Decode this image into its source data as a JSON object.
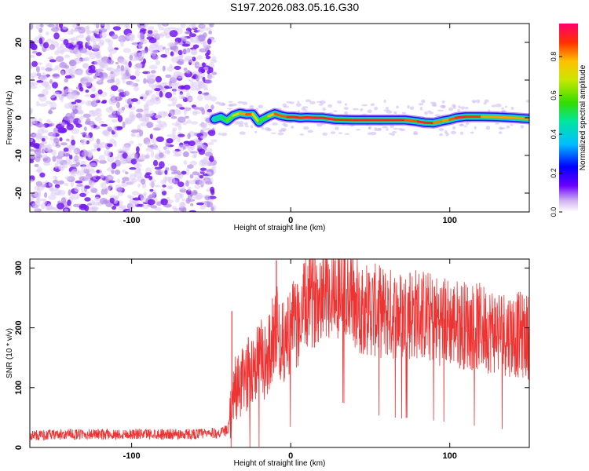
{
  "title": "S197.2026.083.05.16.G30",
  "chart_data": [
    {
      "type": "heatmap",
      "xlabel": "Height of straight line (km)",
      "ylabel": "Frequency (Hz)",
      "xlim": [
        -164,
        150
      ],
      "ylim": [
        -25,
        25
      ],
      "xticks": [
        -100,
        0,
        100
      ],
      "yticks": [
        20,
        10,
        0,
        -10,
        -20
      ],
      "noise_region_x": [
        -164,
        -48
      ],
      "signal_track": {
        "x": [
          -48,
          -44,
          -40,
          -36,
          -32,
          -28,
          -24,
          -20,
          -18,
          -14,
          -10,
          -6,
          -2,
          2,
          6,
          10,
          16,
          20,
          28,
          40,
          60,
          72,
          76,
          80,
          84,
          90,
          96,
          100,
          104,
          110,
          120,
          130,
          140,
          150
        ],
        "freq": [
          -0.4,
          0.2,
          -0.8,
          0.6,
          1.2,
          0.9,
          1.0,
          -1.2,
          -0.5,
          0.4,
          1.1,
          0.5,
          0.2,
          0.2,
          0.0,
          0.1,
          0.0,
          0.0,
          -0.5,
          -0.6,
          -0.6,
          -0.6,
          -0.8,
          -1.0,
          -1.3,
          -1.4,
          -0.8,
          -0.5,
          0.0,
          0.3,
          0.3,
          0.2,
          0.0,
          -0.3
        ],
        "amplitude": [
          0.4,
          0.45,
          0.6,
          0.65,
          0.8,
          0.85,
          0.9,
          0.6,
          0.5,
          0.7,
          0.9,
          0.85,
          0.9,
          0.95,
          0.9,
          0.9,
          0.95,
          0.95,
          0.9,
          0.9,
          0.95,
          0.9,
          0.85,
          0.9,
          0.95,
          0.9,
          0.8,
          0.85,
          0.9,
          0.95,
          0.85,
          0.8,
          0.85,
          0.8
        ]
      },
      "colorbar": {
        "label": "Normalized spectral amplitude",
        "range": [
          0,
          0.97
        ],
        "ticks": [
          0.0,
          0.2,
          0.4,
          0.6,
          0.8
        ]
      }
    },
    {
      "type": "line",
      "xlabel": "Height of straight line (km)",
      "ylabel": "SNR (10 * v/v)",
      "xlim": [
        -164,
        150
      ],
      "ylim": [
        0,
        315
      ],
      "xticks": [
        -100,
        0,
        100
      ],
      "yticks": [
        0,
        100,
        200,
        300
      ],
      "series": [
        {
          "name": "SNR",
          "color": "#ee3333",
          "x": [
            -164,
            -150,
            -130,
            -110,
            -90,
            -70,
            -55,
            -45,
            -40,
            -37,
            -35,
            -33,
            -30,
            -25,
            -20,
            -15,
            -12,
            -9,
            -5,
            0,
            5,
            10,
            15,
            20,
            25,
            30,
            35,
            40,
            50,
            60,
            70,
            80,
            90,
            100,
            110,
            120,
            130,
            140,
            150
          ],
          "y": [
            20,
            21,
            22,
            22,
            23,
            22,
            23,
            24,
            28,
            50,
            110,
            95,
            110,
            130,
            150,
            140,
            180,
            200,
            170,
            200,
            210,
            240,
            250,
            270,
            260,
            265,
            255,
            240,
            230,
            225,
            220,
            225,
            215,
            210,
            205,
            200,
            195,
            190,
            185
          ]
        }
      ],
      "spikes": [
        {
          "x": -37,
          "y": 228
        },
        {
          "x": -9,
          "y": 313
        },
        {
          "x": 34,
          "y": 312
        },
        {
          "x": 75,
          "y": 292
        }
      ]
    }
  ]
}
